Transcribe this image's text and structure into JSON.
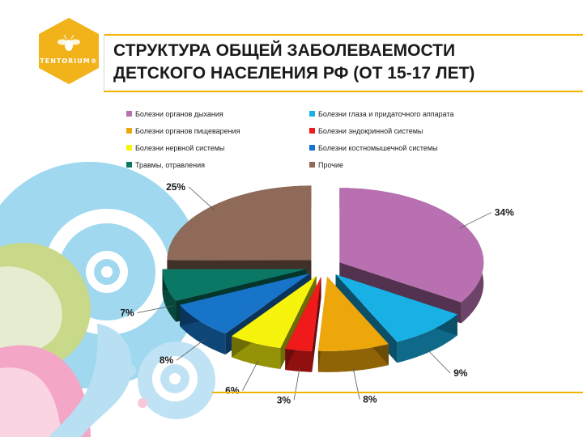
{
  "header": {
    "title_line1": "СТРУКТУРА ОБЩЕЙ ЗАБОЛЕВАЕМОСТИ",
    "title_line2": "ДЕТСКОГО НАСЕЛЕНИЯ РФ (ОТ 15-17 ЛЕТ)",
    "logo_text": "TENTORIUM®",
    "logo_icon": "bee-hexagon-icon",
    "logo_color": "#f2b21a"
  },
  "chart_data": {
    "type": "pie",
    "categories": [
      "Болезни органов дыхания",
      "Болезни глаза и придаточного аппарата",
      "Болезни органов пищеварения",
      "Болезни эндокринной системы",
      "Болезни нервной системы",
      "Болезни костномышечной системы",
      "Травмы, отравления",
      "Прочие"
    ],
    "values": [
      34,
      9,
      8,
      3,
      6,
      8,
      7,
      25
    ],
    "value_labels": [
      "34%",
      "9%",
      "8%",
      "3%",
      "6%",
      "8%",
      "7%",
      "25%"
    ],
    "colors": [
      "#b870b0",
      "#19b0e6",
      "#eea70a",
      "#f01a1a",
      "#f6f30c",
      "#1874c8",
      "#0b7866",
      "#8f6a58"
    ],
    "legend_position": "top",
    "exploded": true,
    "three_d": true
  }
}
